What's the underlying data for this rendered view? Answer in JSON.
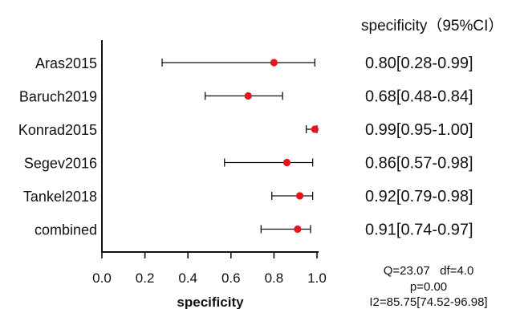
{
  "chart_data": {
    "type": "forest",
    "column_header": "specificity（95%CI）",
    "xlabel": "specificity",
    "xlim": [
      0.0,
      1.0
    ],
    "xticks": [
      "0.0",
      "0.2",
      "0.4",
      "0.6",
      "0.8",
      "1.0"
    ],
    "studies": [
      {
        "name": "Aras2015",
        "estimate": 0.8,
        "lower": 0.28,
        "upper": 0.99,
        "label": "0.80[0.28-0.99]"
      },
      {
        "name": "Baruch2019",
        "estimate": 0.68,
        "lower": 0.48,
        "upper": 0.84,
        "label": "0.68[0.48-0.84]"
      },
      {
        "name": "Konrad2015",
        "estimate": 0.99,
        "lower": 0.95,
        "upper": 1.0,
        "label": "0.99[0.95-1.00]"
      },
      {
        "name": "Segev2016",
        "estimate": 0.86,
        "lower": 0.57,
        "upper": 0.98,
        "label": "0.86[0.57-0.98]"
      },
      {
        "name": "Tankel2018",
        "estimate": 0.92,
        "lower": 0.79,
        "upper": 0.98,
        "label": "0.92[0.79-0.98]"
      },
      {
        "name": "combined",
        "estimate": 0.91,
        "lower": 0.74,
        "upper": 0.97,
        "label": "0.91[0.74-0.97]"
      }
    ],
    "heterogeneity": {
      "line1": "Q=23.07   df=4.0",
      "line2": "p=0.00",
      "line3": "I2=85.75[74.52-96.98]"
    },
    "point_color": "#e8141b",
    "line_color": "#111111"
  }
}
